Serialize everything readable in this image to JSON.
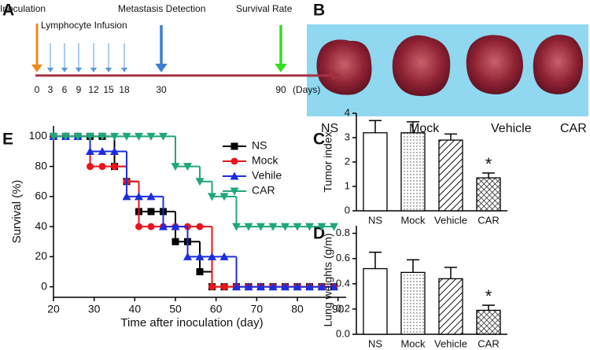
{
  "panel_labels": [
    "A",
    "B",
    "C",
    "D",
    "E"
  ],
  "timeline": {
    "days": [
      0,
      3,
      6,
      9,
      12,
      15,
      18,
      30,
      90
    ],
    "unit": "(Days)",
    "events": {
      "inoculation": "Inoculation",
      "infusion": "Lymphocyte Infusion",
      "detection": "Metastasis Detection",
      "survival": "Survival Rate"
    }
  },
  "photo": {
    "labels": [
      "NS",
      "Mock",
      "Vehicle",
      "CAR"
    ]
  },
  "chart_data": [
    {
      "type": "line",
      "step": true,
      "xlabel": "Time after inoculation (day)",
      "ylabel": "Survival (%)",
      "x": [
        20,
        23,
        26,
        29,
        32,
        35,
        38,
        41,
        44,
        47,
        50,
        53,
        56,
        59,
        62,
        65,
        68,
        71,
        74,
        77,
        80,
        83,
        86,
        89
      ],
      "series": [
        {
          "name": "NS",
          "color": "#000000",
          "marker": "square",
          "values": [
            100,
            100,
            100,
            100,
            100,
            80,
            70,
            50,
            50,
            50,
            30,
            30,
            10,
            0,
            0,
            0,
            0,
            0,
            0,
            0,
            0,
            0,
            0,
            0
          ]
        },
        {
          "name": "Mock",
          "color": "#e8141b",
          "marker": "circle",
          "values": [
            100,
            100,
            100,
            80,
            80,
            80,
            70,
            40,
            40,
            40,
            40,
            40,
            40,
            0,
            0,
            0,
            0,
            0,
            0,
            0,
            0,
            0,
            0,
            0
          ]
        },
        {
          "name": "Vehile",
          "color": "#1c2de0",
          "marker": "triangle-up",
          "values": [
            100,
            100,
            100,
            90,
            90,
            90,
            60,
            60,
            60,
            40,
            40,
            20,
            20,
            20,
            20,
            0,
            0,
            0,
            0,
            0,
            0,
            0,
            0,
            0
          ]
        },
        {
          "name": "CAR",
          "color": "#1fa77a",
          "marker": "triangle-down",
          "values": [
            100,
            100,
            100,
            100,
            100,
            100,
            100,
            100,
            100,
            100,
            80,
            80,
            70,
            60,
            60,
            40,
            40,
            40,
            40,
            40,
            40,
            40,
            40,
            40
          ]
        }
      ],
      "xlim": [
        20,
        92
      ],
      "xticks": [
        20,
        30,
        40,
        50,
        60,
        70,
        80,
        90
      ],
      "ylim": [
        -7,
        107
      ],
      "yticks": [
        0,
        20,
        40,
        60,
        80,
        100
      ],
      "legend": "upper right"
    },
    {
      "type": "bar",
      "ylabel": "Tumor index",
      "categories": [
        "NS",
        "Mock",
        "Vehicle",
        "CAR"
      ],
      "values": [
        3.2,
        3.2,
        2.9,
        1.35
      ],
      "errors": [
        0.5,
        0.45,
        0.25,
        0.2
      ],
      "patterns": [
        "none",
        "dots",
        "hatch",
        "crosshatch"
      ],
      "ylim": [
        0,
        4
      ],
      "yticks": [
        0,
        1,
        2,
        3,
        4
      ],
      "annotation": {
        "text": "*",
        "category": "CAR"
      }
    },
    {
      "type": "bar",
      "ylabel": "Lung weights (g/m)",
      "categories": [
        "NS",
        "Mock",
        "Vehicle",
        "CAR"
      ],
      "values": [
        0.52,
        0.49,
        0.44,
        0.19
      ],
      "errors": [
        0.13,
        0.1,
        0.09,
        0.04
      ],
      "patterns": [
        "none",
        "dots",
        "hatch",
        "crosshatch"
      ],
      "ylim": [
        0,
        0.86
      ],
      "yticks": [
        {
          "value": 0,
          "label": "0.0"
        },
        0.2,
        0.4,
        0.6,
        0.8
      ],
      "annotation": {
        "text": "*",
        "category": "CAR"
      }
    }
  ]
}
